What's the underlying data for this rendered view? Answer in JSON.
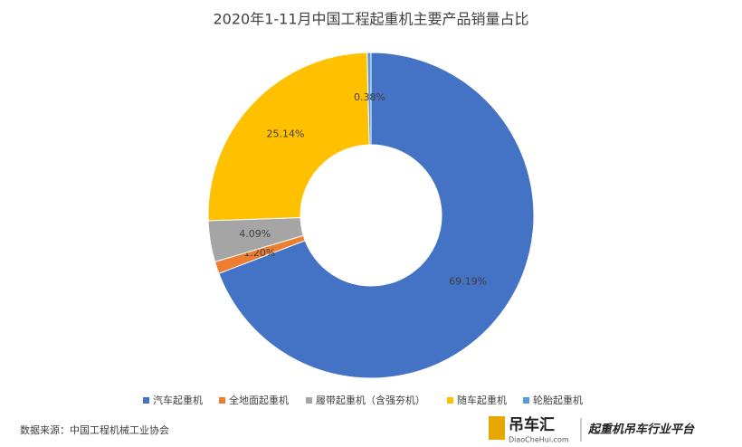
{
  "chart_data": {
    "type": "donut",
    "title": "2020年1-11月中国工程起重机主要产品销量占比",
    "categories": [
      "汽车起重机",
      "全地面起重机",
      "履带起重机（含强夯机）",
      "随车起重机",
      "轮胎起重机"
    ],
    "values": [
      69.19,
      1.2,
      4.09,
      25.14,
      0.38
    ],
    "value_labels": [
      "69.19%",
      "1.20%",
      "4.09%",
      "25.14%",
      "0.38%"
    ],
    "colors": [
      "#4472c4",
      "#ed7d31",
      "#a5a5a5",
      "#ffc000",
      "#5b9bd5"
    ],
    "legend": "bottom"
  },
  "footer": {
    "source": "数据来源：中国工程机械工业协会",
    "logo": "吊车汇",
    "logo_url": "DiaoCheHui.com",
    "slogan": "起重机吊车行业平台"
  }
}
